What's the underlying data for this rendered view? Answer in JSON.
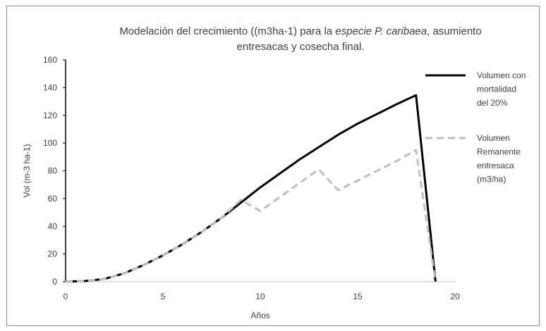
{
  "chart_data": {
    "type": "line",
    "title_parts": [
      {
        "text": "Modelación del crecimiento ((m3ha-1) para la ",
        "italic": false
      },
      {
        "text": "especie P. caribaea",
        "italic": true
      },
      {
        "text": ", asumiento",
        "italic": false
      }
    ],
    "title_line2": "entresacas y cosecha final.",
    "xlabel": "Años",
    "ylabel": "Vol (m-3 ha-1)",
    "xlim": [
      0,
      20
    ],
    "ylim": [
      0,
      160
    ],
    "x_ticks": [
      0,
      5,
      10,
      15,
      20
    ],
    "y_ticks": [
      0,
      20,
      40,
      60,
      80,
      100,
      120,
      140,
      160
    ],
    "grid": false,
    "legend_position": "right",
    "series": [
      {
        "name_lines": [
          "Volumen con",
          "mortalidad",
          "del 20%"
        ],
        "color": "#000000",
        "style": "solid",
        "points": [
          [
            0,
            0
          ],
          [
            1,
            0.5
          ],
          [
            2,
            2
          ],
          [
            3,
            6
          ],
          [
            4,
            12
          ],
          [
            5,
            19
          ],
          [
            6,
            27
          ],
          [
            7,
            36
          ],
          [
            8,
            46
          ],
          [
            9,
            57
          ],
          [
            10,
            68
          ],
          [
            11,
            78
          ],
          [
            12,
            88
          ],
          [
            13,
            97
          ],
          [
            14,
            106
          ],
          [
            15,
            114
          ],
          [
            16,
            121
          ],
          [
            17,
            128
          ],
          [
            18,
            134.5
          ],
          [
            19,
            0
          ]
        ]
      },
      {
        "name_lines": [
          "Volumen",
          "Remanente",
          "entresaca",
          "(m3/ha)"
        ],
        "color": "#bfbfbf",
        "style": "dashed",
        "points": [
          [
            0,
            0
          ],
          [
            1,
            0.5
          ],
          [
            2,
            2
          ],
          [
            3,
            6
          ],
          [
            4,
            12
          ],
          [
            5,
            19
          ],
          [
            6,
            27
          ],
          [
            7,
            36
          ],
          [
            8,
            46
          ],
          [
            9,
            59
          ],
          [
            10,
            51
          ],
          [
            11,
            61
          ],
          [
            12,
            71
          ],
          [
            13,
            81
          ],
          [
            14,
            66
          ],
          [
            15,
            73
          ],
          [
            16,
            80
          ],
          [
            17,
            87
          ],
          [
            18,
            95
          ],
          [
            19,
            0
          ]
        ]
      }
    ]
  }
}
